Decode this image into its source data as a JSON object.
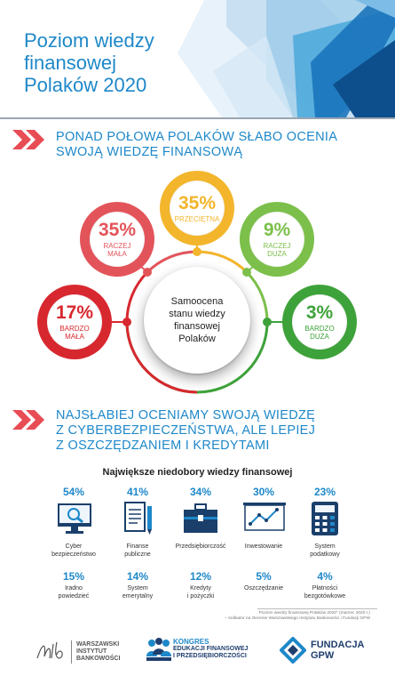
{
  "header": {
    "title_lines": [
      "Poziom wiedzy",
      "finansowej",
      "Polaków 2020"
    ]
  },
  "section1": {
    "heading_lines": [
      "PONAD POŁOWA POLAKÓW SŁABO OCENIA",
      "SWOJĄ WIEDZĘ FINANSOWĄ"
    ]
  },
  "center": {
    "lines": [
      "Samoocena",
      "stanu wiedzy",
      "finansowej",
      "Polaków"
    ]
  },
  "bubbles": [
    {
      "pct": "17%",
      "label_lines": [
        "BARDZO",
        "MAŁA"
      ],
      "color": "#d8282f"
    },
    {
      "pct": "35%",
      "label_lines": [
        "RACZEJ",
        "MAŁA"
      ],
      "color": "#e3545a"
    },
    {
      "pct": "35%",
      "label_lines": [
        "PRZECIĘTNA"
      ],
      "color": "#f3b52b"
    },
    {
      "pct": "9%",
      "label_lines": [
        "RACZEJ",
        "DUŻA"
      ],
      "color": "#7cc04b"
    },
    {
      "pct": "3%",
      "label_lines": [
        "BARDZO",
        "DUŻA"
      ],
      "color": "#3ea23a"
    }
  ],
  "section2": {
    "heading_lines": [
      "NAJSŁABIEJ OCENIAMY SWOJĄ WIEDZĘ",
      "Z CYBERBEZPIECZEŃSTWA, ALE LEPIEJ",
      "Z OSZCZĘDZANIEM I KREDYTAMI"
    ],
    "subtitle": "Największe niedobory wiedzy finansowej"
  },
  "stats_row1": [
    {
      "value": "54%",
      "name_lines": [
        "Cyber",
        "bezpieczeństwo"
      ],
      "icon": "monitor-lock-icon"
    },
    {
      "value": "41%",
      "name_lines": [
        "Finanse",
        "publiczne"
      ],
      "icon": "document-pen-icon"
    },
    {
      "value": "34%",
      "name_lines": [
        "Przedsiębiorczość"
      ],
      "icon": "briefcase-icon"
    },
    {
      "value": "30%",
      "name_lines": [
        "Inwestowanie"
      ],
      "icon": "growth-chart-icon"
    },
    {
      "value": "23%",
      "name_lines": [
        "System",
        "podatkowy"
      ],
      "icon": "calculator-icon"
    }
  ],
  "stats_row2": [
    {
      "value": "15%",
      "name_lines": [
        "Iradno",
        "powiedzieć"
      ]
    },
    {
      "value": "14%",
      "name_lines": [
        "System",
        "emerytalny"
      ]
    },
    {
      "value": "12%",
      "name_lines": [
        "Kredyty",
        "i pożyczki"
      ]
    },
    {
      "value": "5%",
      "name_lines": [
        "Oszczędzanie"
      ]
    },
    {
      "value": "4%",
      "name_lines": [
        "Płatności",
        "bezgotówkowe"
      ]
    }
  ],
  "footnote_lines": [
    "Poziom wiedzy finansowej Polaków 2020\" (marzec 2020 r.)",
    "– Indikator na zlecenie Warszawskiego Instytutu Bankowości i Fundacji GPW"
  ],
  "footer": {
    "wib_lines": [
      "WARSZAWSKI",
      "INSTYTUT",
      "BANKOWOŚCI"
    ],
    "kongres_lines": [
      "KONGRES",
      "EDUKACJI FINANSOWEJ",
      "I PRZEDSIĘBIORCZOŚCI"
    ],
    "gpw_lines": [
      "FUNDACJA",
      "GPW"
    ]
  },
  "colors": {
    "brand_blue": "#1e88c9",
    "footer_navy": "#1f3f6e"
  }
}
